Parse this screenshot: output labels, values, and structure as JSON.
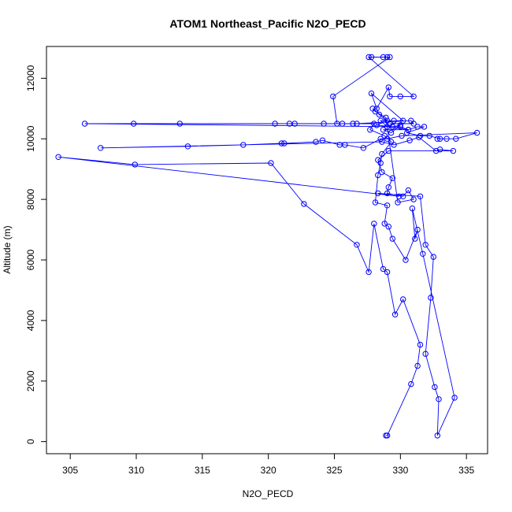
{
  "chart_data": {
    "type": "scatter",
    "title": "ATOM1 Northeast_Pacific N2O_PECD",
    "xlabel": "N2O_PECD",
    "ylabel": "Altitude (m)",
    "xlim": [
      303.2,
      336.6
    ],
    "ylim": [
      -400,
      13050
    ],
    "xticks": [
      305,
      310,
      315,
      320,
      325,
      330,
      335
    ],
    "yticks": [
      0,
      2000,
      4000,
      6000,
      8000,
      10000,
      12000
    ],
    "grid": false,
    "legend": "none",
    "style": {
      "marker": "open-circle",
      "connected": true,
      "color": "#0000ff"
    },
    "series": [
      {
        "points": [
          [
            328.9,
            200
          ],
          [
            329.0,
            200
          ],
          [
            330.8,
            1900
          ],
          [
            331.3,
            2500
          ],
          [
            331.5,
            3200
          ],
          [
            330.2,
            4700
          ],
          [
            329.6,
            4200
          ],
          [
            329.0,
            5600
          ],
          [
            328.7,
            5700
          ],
          [
            328.0,
            7200
          ],
          [
            327.6,
            5600
          ],
          [
            326.7,
            6500
          ],
          [
            322.7,
            7850
          ],
          [
            320.2,
            9200
          ],
          [
            309.9,
            9150
          ],
          [
            304.1,
            9400
          ],
          [
            329.9,
            8100
          ],
          [
            328.3,
            8200
          ],
          [
            331.5,
            8100
          ],
          [
            331.9,
            6500
          ],
          [
            332.5,
            6100
          ],
          [
            332.3,
            4750
          ],
          [
            331.9,
            2900
          ],
          [
            332.6,
            1800
          ],
          [
            332.9,
            1400
          ],
          [
            332.8,
            200
          ],
          [
            334.1,
            1450
          ],
          [
            331.7,
            6200
          ],
          [
            330.9,
            7700
          ],
          [
            331.1,
            6700
          ],
          [
            331.3,
            7000
          ],
          [
            330.4,
            6000
          ],
          [
            329.4,
            6700
          ],
          [
            329.1,
            7100
          ],
          [
            328.8,
            7200
          ],
          [
            329.0,
            7800
          ],
          [
            328.1,
            7900
          ],
          [
            328.3,
            8800
          ],
          [
            328.5,
            9200
          ],
          [
            328.6,
            9500
          ],
          [
            329.3,
            9900
          ],
          [
            328.8,
            10100
          ],
          [
            327.7,
            10300
          ],
          [
            328.0,
            10500
          ],
          [
            326.4,
            10500
          ],
          [
            325.6,
            10500
          ],
          [
            324.2,
            10500
          ],
          [
            322.0,
            10500
          ],
          [
            321.6,
            10500
          ],
          [
            320.5,
            10500
          ],
          [
            313.3,
            10500
          ],
          [
            309.8,
            10500
          ],
          [
            306.1,
            10500
          ],
          [
            330.0,
            10400
          ],
          [
            330.6,
            10300
          ],
          [
            331.3,
            10400
          ],
          [
            331.8,
            10400
          ],
          [
            330.5,
            10200
          ],
          [
            331.5,
            10100
          ],
          [
            332.2,
            10100
          ],
          [
            333.0,
            10000
          ],
          [
            332.8,
            10000
          ],
          [
            333.5,
            10000
          ],
          [
            334.2,
            10000
          ],
          [
            335.8,
            10200
          ],
          [
            330.1,
            10100
          ],
          [
            329.0,
            10000
          ],
          [
            328.5,
            10000
          ],
          [
            327.2,
            9700
          ],
          [
            325.8,
            9800
          ],
          [
            325.4,
            9800
          ],
          [
            324.1,
            9950
          ],
          [
            323.6,
            9900
          ],
          [
            321.2,
            9850
          ],
          [
            321.0,
            9850
          ],
          [
            318.1,
            9800
          ],
          [
            313.9,
            9750
          ],
          [
            307.3,
            9700
          ],
          [
            328.6,
            9900
          ],
          [
            329.5,
            9800
          ],
          [
            330.7,
            9950
          ],
          [
            331.4,
            10050
          ],
          [
            332.7,
            9600
          ],
          [
            333.0,
            9650
          ],
          [
            334.0,
            9600
          ],
          [
            329.1,
            9600
          ],
          [
            328.3,
            9300
          ],
          [
            328.6,
            8900
          ],
          [
            329.4,
            8700
          ],
          [
            329.1,
            8400
          ],
          [
            329.0,
            8200
          ],
          [
            330.2,
            8100
          ],
          [
            330.6,
            8300
          ],
          [
            331.0,
            8000
          ],
          [
            329.8,
            7900
          ],
          [
            328.9,
            10700
          ],
          [
            328.1,
            10900
          ],
          [
            327.9,
            11000
          ],
          [
            328.4,
            10800
          ],
          [
            329.0,
            10600
          ],
          [
            328.2,
            10450
          ],
          [
            329.4,
            10400
          ],
          [
            330.0,
            10450
          ],
          [
            329.3,
            10200
          ],
          [
            328.7,
            10300
          ],
          [
            330.6,
            10300
          ],
          [
            329.0,
            10400
          ],
          [
            328.5,
            10600
          ],
          [
            329.5,
            10600
          ],
          [
            330.2,
            10600
          ],
          [
            327.8,
            11500
          ],
          [
            328.2,
            11000
          ],
          [
            329.1,
            11700
          ],
          [
            329.2,
            11400
          ],
          [
            330.0,
            11400
          ],
          [
            331.0,
            11400
          ],
          [
            327.6,
            12700
          ],
          [
            327.8,
            12700
          ],
          [
            328.7,
            12700
          ],
          [
            329.0,
            12700
          ],
          [
            329.2,
            12700
          ],
          [
            324.9,
            11400
          ],
          [
            325.2,
            10500
          ],
          [
            326.7,
            10500
          ],
          [
            330.8,
            10600
          ],
          [
            331.0,
            10500
          ],
          [
            329.2,
            10500
          ]
        ]
      }
    ]
  }
}
